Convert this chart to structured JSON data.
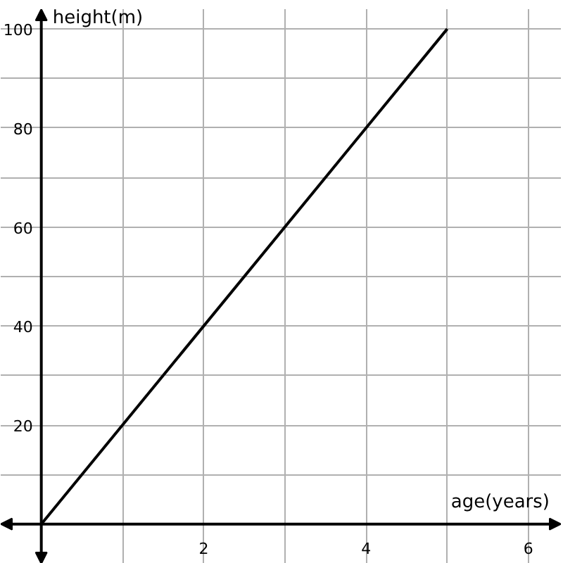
{
  "chart_data": {
    "type": "line",
    "xlabel": "age(years)",
    "ylabel": "height(m)",
    "x": [
      0,
      5
    ],
    "series": [
      {
        "color": "#000000",
        "values": [
          0,
          100
        ]
      }
    ],
    "xlim": [
      -0.5,
      6.4
    ],
    "ylim": [
      -8,
      104
    ],
    "xticks": [
      {
        "value": 1,
        "label": null
      },
      2,
      {
        "value": 3,
        "label": null
      },
      4,
      {
        "value": 5,
        "label": null
      },
      6
    ],
    "yticks": [
      {
        "value": 10,
        "label": null
      },
      20,
      {
        "value": 30,
        "label": null
      },
      40,
      {
        "value": 50,
        "label": null
      },
      60,
      {
        "value": 70,
        "label": null
      },
      80,
      {
        "value": 90,
        "label": null
      },
      100
    ],
    "grid": true,
    "marker": "none",
    "line_style": "solid"
  }
}
